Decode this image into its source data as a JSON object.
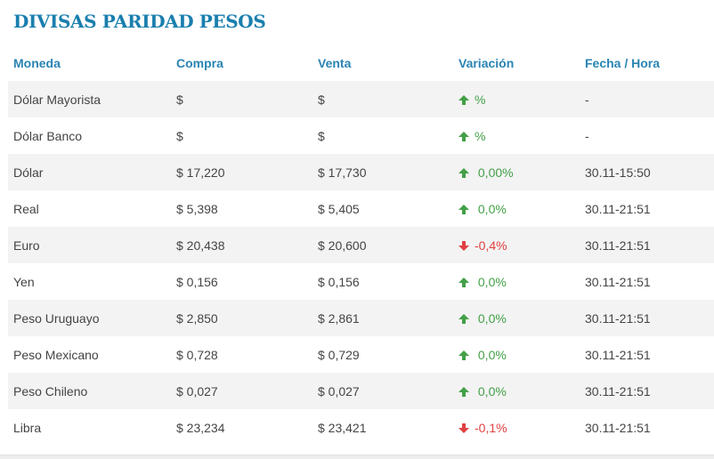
{
  "title": "DIVISAS PARIDAD PESOS",
  "colors": {
    "title": "#1a7fae",
    "header": "#2a84b3",
    "up": "#43a047",
    "down": "#e04040"
  },
  "headers": {
    "moneda": "Moneda",
    "compra": "Compra",
    "venta": "Venta",
    "variacion": "Variación",
    "fecha": "Fecha / Hora"
  },
  "rows": [
    {
      "moneda": "Dólar Mayorista",
      "compra": "$",
      "venta": "$",
      "trend": "up",
      "trend_icon": "arrow-up-icon",
      "variacion": "%",
      "fecha": "-"
    },
    {
      "moneda": "Dólar Banco",
      "compra": "$",
      "venta": "$",
      "trend": "up",
      "trend_icon": "arrow-up-icon",
      "variacion": "%",
      "fecha": "-"
    },
    {
      "moneda": "Dólar",
      "compra": "$ 17,220",
      "venta": "$ 17,730",
      "trend": "up",
      "trend_icon": "arrow-up-icon",
      "variacion": " 0,00%",
      "fecha": "30.11-15:50"
    },
    {
      "moneda": "Real",
      "compra": "$ 5,398",
      "venta": "$ 5,405",
      "trend": "up",
      "trend_icon": "arrow-up-icon",
      "variacion": " 0,0%",
      "fecha": "30.11-21:51"
    },
    {
      "moneda": "Euro",
      "compra": "$ 20,438",
      "venta": "$ 20,600",
      "trend": "down",
      "trend_icon": "arrow-down-icon",
      "variacion": "-0,4%",
      "fecha": "30.11-21:51"
    },
    {
      "moneda": "Yen",
      "compra": "$ 0,156",
      "venta": "$ 0,156",
      "trend": "up",
      "trend_icon": "arrow-up-icon",
      "variacion": " 0,0%",
      "fecha": "30.11-21:51"
    },
    {
      "moneda": "Peso Uruguayo",
      "compra": "$ 2,850",
      "venta": "$ 2,861",
      "trend": "up",
      "trend_icon": "arrow-up-icon",
      "variacion": " 0,0%",
      "fecha": "30.11-21:51"
    },
    {
      "moneda": "Peso Mexicano",
      "compra": "$ 0,728",
      "venta": "$ 0,729",
      "trend": "up",
      "trend_icon": "arrow-up-icon",
      "variacion": " 0,0%",
      "fecha": "30.11-21:51"
    },
    {
      "moneda": "Peso Chileno",
      "compra": "$ 0,027",
      "venta": "$ 0,027",
      "trend": "up",
      "trend_icon": "arrow-up-icon",
      "variacion": " 0,0%",
      "fecha": "30.11-21:51"
    },
    {
      "moneda": "Libra",
      "compra": "$ 23,234",
      "venta": "$ 23,421",
      "trend": "down",
      "trend_icon": "arrow-down-icon",
      "variacion": "-0,1%",
      "fecha": "30.11-21:51"
    }
  ]
}
